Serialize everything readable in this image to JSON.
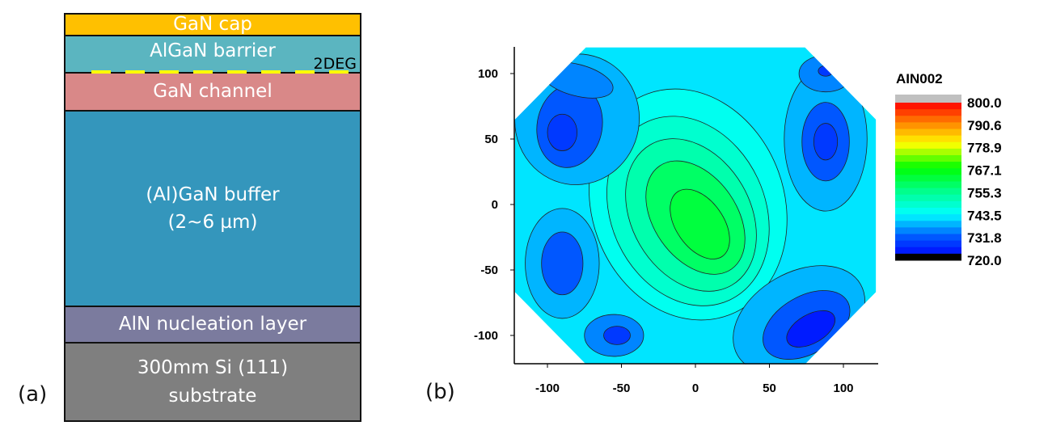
{
  "panel_a": {
    "label": "(a)",
    "layers": [
      {
        "name": "GaN cap",
        "color": "#ffc000"
      },
      {
        "name": "AlGaN barrier",
        "color": "#5bb5c0"
      },
      {
        "name": "GaN channel",
        "color": "#d98888"
      },
      {
        "name": "(Al)GaN buffer",
        "sub": "(2~6 µm)",
        "color": "#3496bc"
      },
      {
        "name": "AlN nucleation layer",
        "color": "#7b7b9e"
      },
      {
        "name": "300mm Si (111)",
        "sub": "substrate",
        "color": "#7f7f7f"
      }
    ],
    "interface_label": "2DEG",
    "interface_color": "#ffff00"
  },
  "panel_b": {
    "label": "(b)"
  },
  "chart_data": {
    "type": "heatmap",
    "subtype": "contour-wafer-map",
    "title": "",
    "colorbar": {
      "title": "AIN002",
      "range": [
        720.0,
        800.0
      ],
      "tick_labels": [
        "800.0",
        "790.6",
        "778.9",
        "767.1",
        "755.3",
        "743.5",
        "731.8",
        "720.0"
      ],
      "overflow_color": "#c0c0c0"
    },
    "x_ticks": [
      -100,
      -50,
      0,
      50,
      100
    ],
    "y_ticks": [
      100,
      50,
      0,
      -50,
      -100
    ],
    "xlim": [
      -122,
      122
    ],
    "ylim": [
      -122,
      120
    ],
    "wafer_shape": "octagon",
    "background_value": 741,
    "features": [
      {
        "x": -5,
        "y": 0,
        "rx": 65,
        "ry": 90,
        "rot": -20,
        "value": 745
      },
      {
        "x": -5,
        "y": -5,
        "rx": 52,
        "ry": 75,
        "rot": -25,
        "value": 749
      },
      {
        "x": -3,
        "y": -8,
        "rx": 40,
        "ry": 62,
        "rot": -30,
        "value": 753
      },
      {
        "x": 0,
        "y": -10,
        "rx": 28,
        "ry": 48,
        "rot": -35,
        "value": 757
      },
      {
        "x": 3,
        "y": -15,
        "rx": 16,
        "ry": 30,
        "rot": -35,
        "value": 761
      },
      {
        "x": -80,
        "y": 65,
        "rx": 42,
        "ry": 50,
        "rot": 10,
        "value": 737
      },
      {
        "x": -85,
        "y": 60,
        "rx": 22,
        "ry": 32,
        "rot": 10,
        "value": 733
      },
      {
        "x": -90,
        "y": 55,
        "rx": 10,
        "ry": 14,
        "rot": 0,
        "value": 729
      },
      {
        "x": -80,
        "y": 95,
        "rx": 25,
        "ry": 12,
        "rot": 15,
        "value": 735
      },
      {
        "x": 88,
        "y": 50,
        "rx": 28,
        "ry": 55,
        "rot": 0,
        "value": 737
      },
      {
        "x": 88,
        "y": 48,
        "rx": 16,
        "ry": 30,
        "rot": 0,
        "value": 733
      },
      {
        "x": 88,
        "y": 48,
        "rx": 8,
        "ry": 14,
        "rot": 0,
        "value": 729
      },
      {
        "x": 88,
        "y": 100,
        "rx": 18,
        "ry": 14,
        "rot": 0,
        "value": 735
      },
      {
        "x": 88,
        "y": 102,
        "rx": 5,
        "ry": 4,
        "rot": 0,
        "value": 727
      },
      {
        "x": -90,
        "y": -45,
        "rx": 25,
        "ry": 42,
        "rot": 0,
        "value": 737
      },
      {
        "x": -90,
        "y": -45,
        "rx": 14,
        "ry": 24,
        "rot": 0,
        "value": 733
      },
      {
        "x": -55,
        "y": -100,
        "rx": 20,
        "ry": 16,
        "rot": 0,
        "value": 735
      },
      {
        "x": -53,
        "y": -100,
        "rx": 9,
        "ry": 7,
        "rot": 0,
        "value": 729
      },
      {
        "x": 70,
        "y": -88,
        "rx": 48,
        "ry": 36,
        "rot": -30,
        "value": 737
      },
      {
        "x": 75,
        "y": -92,
        "rx": 32,
        "ry": 22,
        "rot": -30,
        "value": 731
      },
      {
        "x": 78,
        "y": -95,
        "rx": 18,
        "ry": 11,
        "rot": -30,
        "value": 725
      }
    ]
  }
}
